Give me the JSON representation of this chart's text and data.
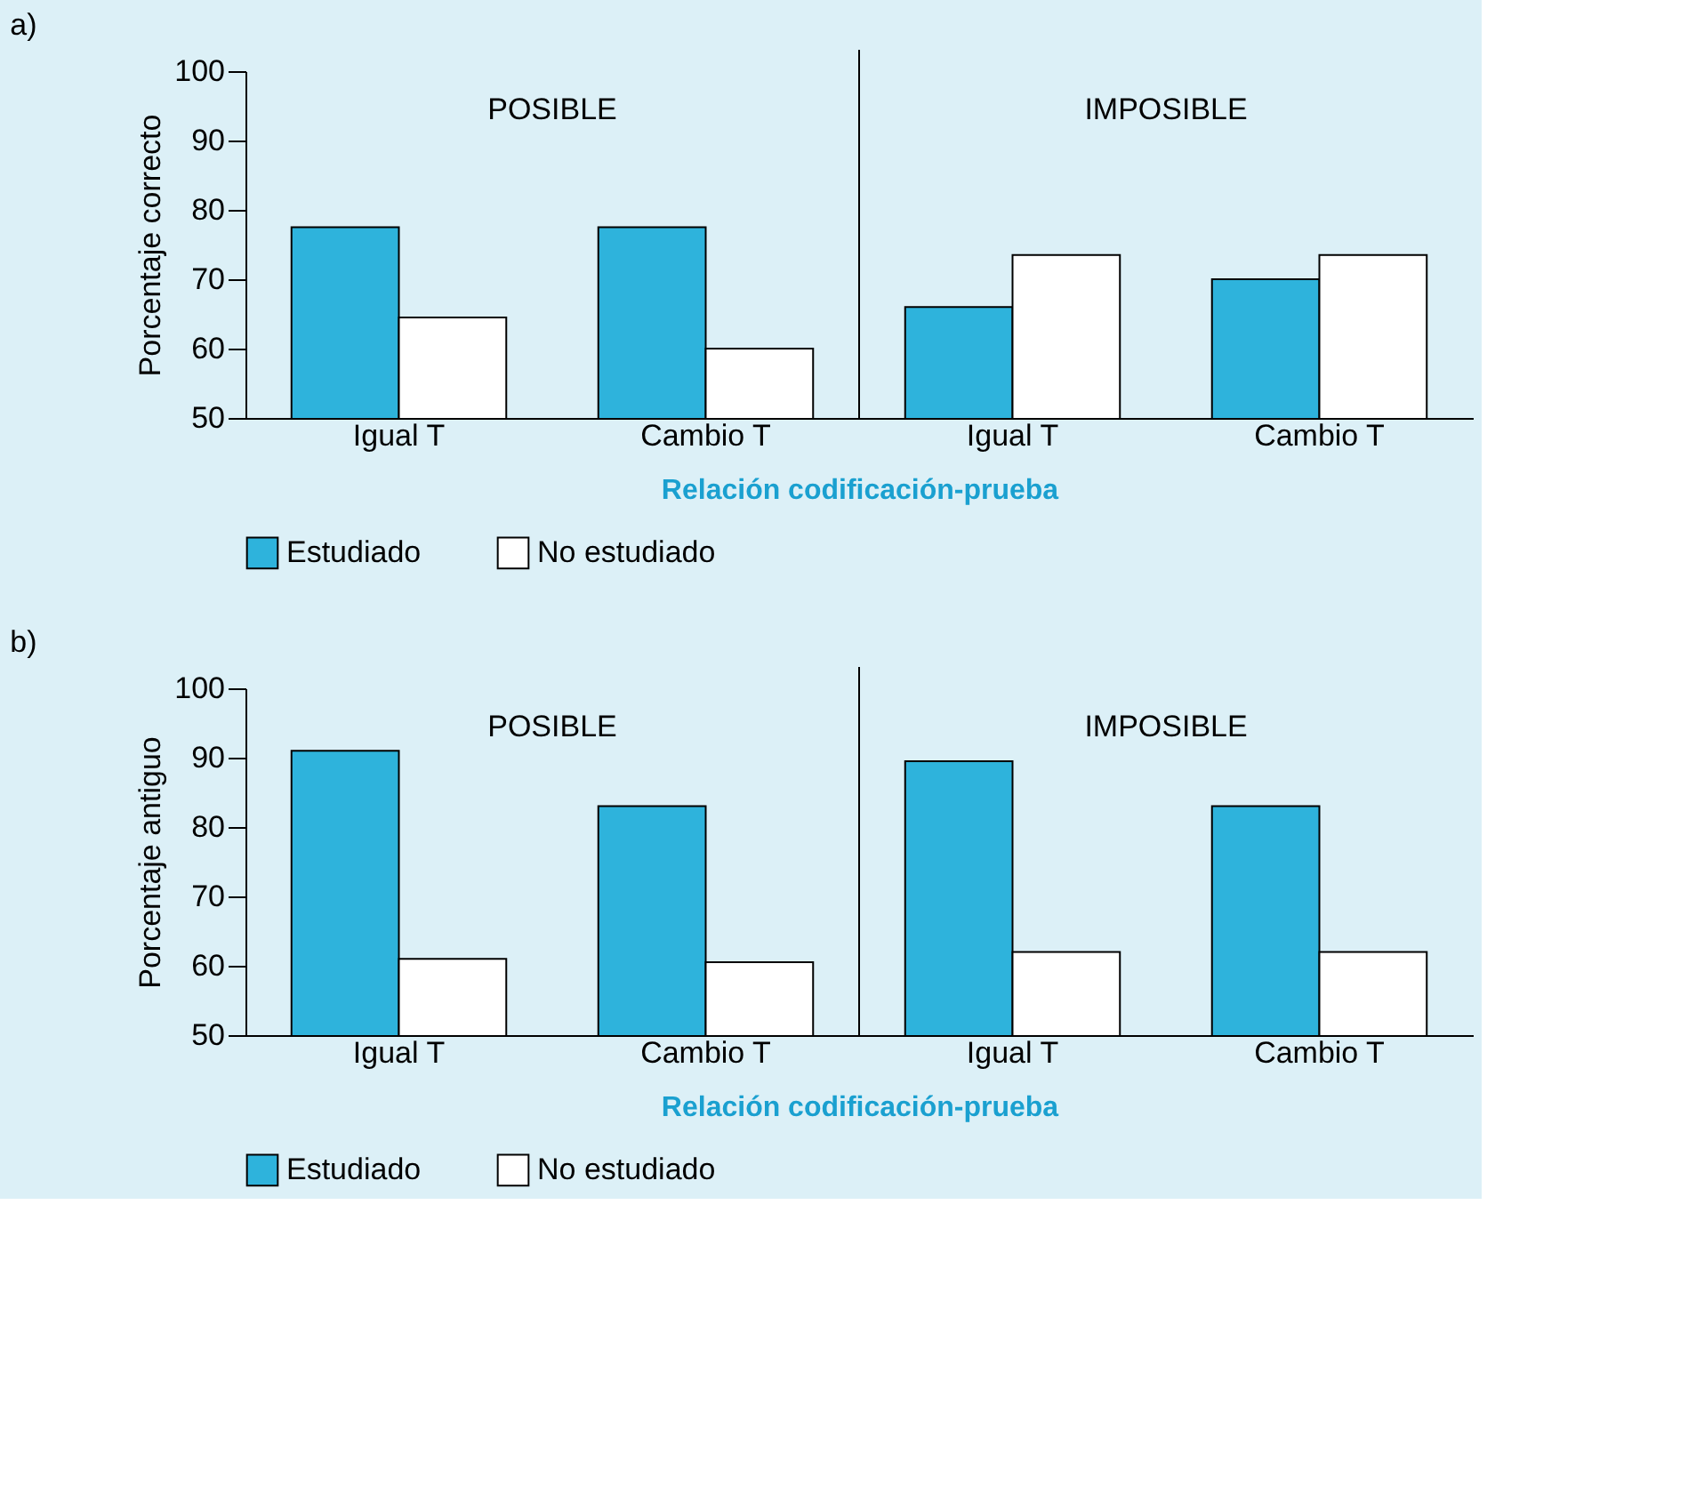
{
  "chart_data": [
    {
      "type": "bar",
      "title": "a)",
      "xlabel": "Relación codificación-prueba",
      "ylabel": "Porcentaje correcto",
      "categories": [
        "Igual T",
        "Cambio T",
        "Igual T",
        "Cambio T"
      ],
      "series": [
        {
          "name": "Estudiado",
          "color": "#2eb3dc",
          "values": [
            77.5,
            77.5,
            66,
            70
          ]
        },
        {
          "name": "No estudiado",
          "color": "#ffffff",
          "values": [
            64.5,
            60,
            73.5,
            73.5
          ]
        }
      ],
      "ylim": [
        50,
        100
      ],
      "yticks": [
        50,
        60,
        70,
        80,
        90,
        100
      ],
      "grid": false,
      "legend": "bottom",
      "annotations": [
        "POSIBLE",
        "IMPOSIBLE"
      ]
    },
    {
      "type": "bar",
      "title": "b)",
      "xlabel": "Relación codificación-prueba",
      "ylabel": "Porcentaje antiguo",
      "categories": [
        "Igual T",
        "Cambio T",
        "Igual T",
        "Cambio T"
      ],
      "series": [
        {
          "name": "Estudiado",
          "color": "#2eb3dc",
          "values": [
            91,
            83,
            89.5,
            83
          ]
        },
        {
          "name": "No estudiado",
          "color": "#ffffff",
          "values": [
            61,
            60.5,
            62,
            62
          ]
        }
      ],
      "ylim": [
        50,
        100
      ],
      "yticks": [
        50,
        60,
        70,
        80,
        90,
        100
      ],
      "grid": false,
      "legend": "bottom",
      "annotations": [
        "POSIBLE",
        "IMPOSIBLE"
      ]
    }
  ]
}
